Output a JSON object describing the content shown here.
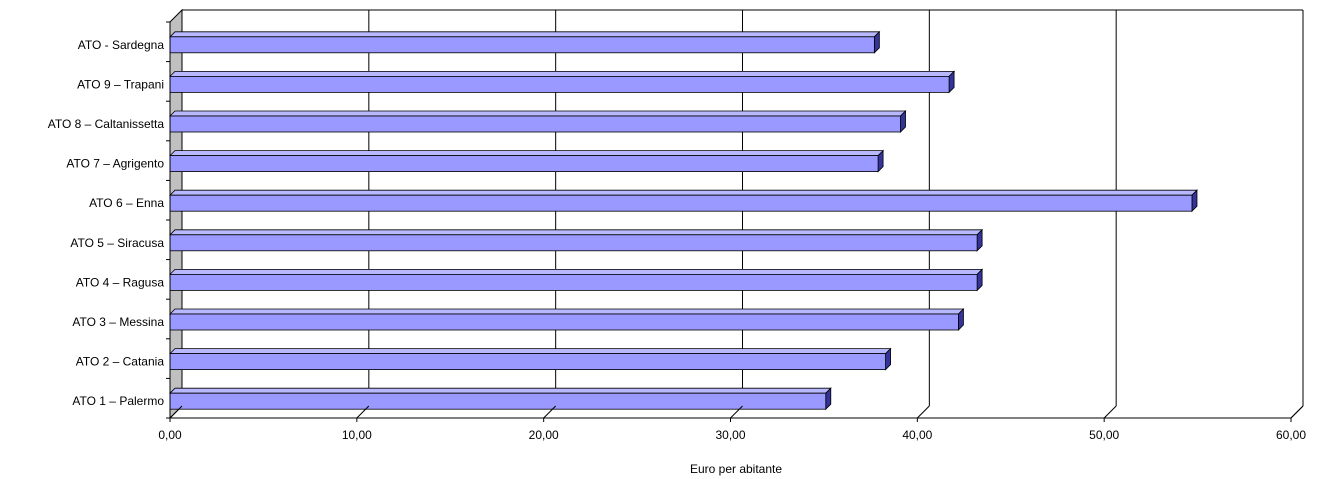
{
  "chart_data": {
    "type": "bar",
    "orientation": "horizontal",
    "style": "3d",
    "categories": [
      "ATO  -  Sardegna",
      "ATO 9 – Trapani",
      "ATO 8 – Caltanissetta",
      "ATO 7 – Agrigento",
      "ATO 6 – Enna",
      "ATO 5 – Siracusa",
      "ATO 4 – Ragusa",
      "ATO 3 – Messina",
      "ATO 2 – Catania",
      "ATO 1 – Palermo"
    ],
    "values": [
      37.7,
      41.7,
      39.1,
      37.9,
      54.7,
      43.2,
      43.2,
      42.2,
      38.3,
      35.1
    ],
    "xlabel": "Euro per abitante",
    "ylabel": "",
    "title": "",
    "xlim": [
      0,
      60
    ],
    "xticks": [
      0,
      10,
      20,
      30,
      40,
      50,
      60
    ],
    "xtick_labels": [
      "0,00",
      "10,00",
      "20,00",
      "30,00",
      "40,00",
      "50,00",
      "60,00"
    ],
    "grid": "vertical",
    "legend": "none",
    "colors": {
      "bar_front": "#9999ff",
      "bar_top": "#b8b8ff",
      "bar_side": "#333399",
      "gridline": "#000000",
      "wall": "#c0c0c0"
    }
  }
}
